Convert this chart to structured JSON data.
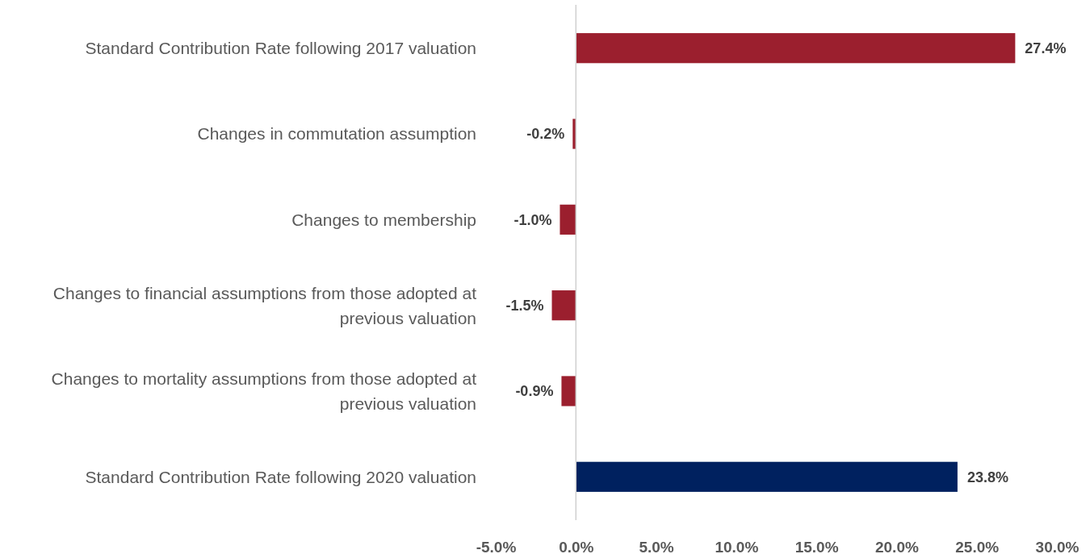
{
  "chart_data": {
    "type": "bar",
    "orientation": "horizontal",
    "categories": [
      "Standard Contribution Rate following 2017 valuation",
      "Changes in commutation assumption",
      "Changes to membership",
      "Changes to financial assumptions from those adopted at previous valuation",
      "Changes to mortality assumptions from those adopted at previous valuation",
      "Standard Contribution Rate following 2020 valuation"
    ],
    "values": [
      27.4,
      -0.2,
      -1.0,
      -1.5,
      -0.9,
      23.8
    ],
    "colors": [
      "#9b1f2e",
      "#9b1f2e",
      "#9b1f2e",
      "#9b1f2e",
      "#9b1f2e",
      "#00215f"
    ],
    "value_labels": [
      "27.4%",
      "-0.2%",
      "-1.0%",
      "-1.5%",
      "-0.9%",
      "23.8%"
    ],
    "xlim": [
      -5,
      30
    ],
    "xticks": [
      {
        "value": -5,
        "label": "-5.0%"
      },
      {
        "value": 0,
        "label": "0.0%"
      },
      {
        "value": 5,
        "label": "5.0%"
      },
      {
        "value": 10,
        "label": "10.0%"
      },
      {
        "value": 15,
        "label": "15.0%"
      },
      {
        "value": 20,
        "label": "20.0%"
      },
      {
        "value": 25,
        "label": "25.0%"
      },
      {
        "value": 30,
        "label": "30.0%"
      }
    ]
  }
}
